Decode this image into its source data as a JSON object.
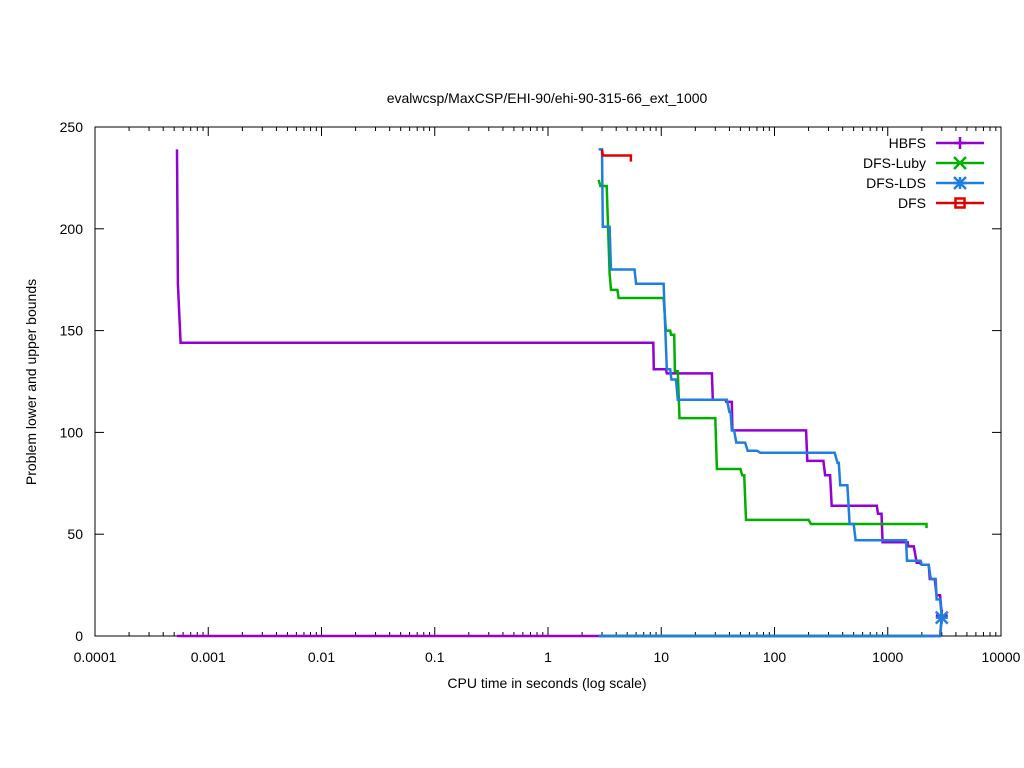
{
  "chart_data": {
    "type": "line",
    "title": "evalwcsp/MaxCSP/EHI-90/ehi-90-315-66_ext_1000",
    "xlabel": "CPU time in seconds (log scale)",
    "ylabel": "Problem lower and upper bounds",
    "xscale": "log",
    "xlim": [
      0.0001,
      10000
    ],
    "ylim": [
      0,
      250
    ],
    "xticks": [
      {
        "value": 0.0001,
        "label": "0.0001"
      },
      {
        "value": 0.001,
        "label": "0.001"
      },
      {
        "value": 0.01,
        "label": "0.01"
      },
      {
        "value": 0.1,
        "label": "0.1"
      },
      {
        "value": 1,
        "label": "1"
      },
      {
        "value": 10,
        "label": "10"
      },
      {
        "value": 100,
        "label": "100"
      },
      {
        "value": 1000,
        "label": "1000"
      },
      {
        "value": 10000,
        "label": "10000"
      }
    ],
    "yticks": [
      {
        "value": 0,
        "label": "0"
      },
      {
        "value": 50,
        "label": "50"
      },
      {
        "value": 100,
        "label": "100"
      },
      {
        "value": 150,
        "label": "150"
      },
      {
        "value": 200,
        "label": "200"
      },
      {
        "value": 250,
        "label": "250"
      }
    ],
    "grid": false,
    "legend_position": "top-right",
    "series": [
      {
        "name": "HBFS",
        "color": "#9400d3",
        "marker": "plus",
        "upper": [
          [
            0.00053,
            239
          ],
          [
            0.00054,
            173
          ],
          [
            0.00057,
            144
          ],
          [
            8.5,
            144
          ],
          [
            8.6,
            131
          ],
          [
            11,
            131
          ],
          [
            11.2,
            129
          ],
          [
            14.5,
            129
          ],
          [
            28,
            129
          ],
          [
            28.5,
            116
          ],
          [
            37,
            116
          ],
          [
            37.5,
            115
          ],
          [
            42,
            115
          ],
          [
            42.5,
            101
          ],
          [
            190,
            101
          ],
          [
            195,
            86
          ],
          [
            270,
            86
          ],
          [
            280,
            79
          ],
          [
            310,
            79
          ],
          [
            320,
            64
          ],
          [
            800,
            64
          ],
          [
            820,
            60
          ],
          [
            880,
            60
          ],
          [
            900,
            46
          ],
          [
            1500,
            46
          ],
          [
            1520,
            44
          ],
          [
            1700,
            44
          ],
          [
            1800,
            36
          ],
          [
            1900,
            36
          ],
          [
            2000,
            35
          ],
          [
            2300,
            35
          ],
          [
            2350,
            28
          ],
          [
            2600,
            28
          ],
          [
            2700,
            20
          ],
          [
            2900,
            20
          ],
          [
            3000,
            10
          ]
        ],
        "lower": [
          [
            0.00053,
            0
          ],
          [
            2900,
            0
          ],
          [
            3000,
            10
          ]
        ],
        "end": [
          3000,
          10
        ]
      },
      {
        "name": "DFS-Luby",
        "color": "#00b000",
        "marker": "x",
        "upper": [
          [
            2.8,
            224
          ],
          [
            2.9,
            221
          ],
          [
            3.3,
            221
          ],
          [
            3.5,
            178
          ],
          [
            3.6,
            170
          ],
          [
            4.1,
            170
          ],
          [
            4.2,
            166
          ],
          [
            10.5,
            166
          ],
          [
            11,
            150
          ],
          [
            12,
            150
          ],
          [
            12.2,
            148
          ],
          [
            13,
            148
          ],
          [
            13.2,
            130
          ],
          [
            14,
            130
          ],
          [
            14.5,
            107
          ],
          [
            30,
            107
          ],
          [
            31,
            82
          ],
          [
            50,
            82
          ],
          [
            52,
            79
          ],
          [
            54,
            79
          ],
          [
            56,
            57
          ],
          [
            200,
            57
          ],
          [
            210,
            55
          ],
          [
            2200,
            55
          ],
          [
            2200,
            53
          ]
        ],
        "lower": [
          [
            2.8,
            0
          ],
          [
            2200,
            0
          ]
        ],
        "end": null
      },
      {
        "name": "DFS-LDS",
        "color": "#1e7fe0",
        "marker": "star",
        "upper": [
          [
            2.8,
            239
          ],
          [
            3.0,
            239
          ],
          [
            3.05,
            201
          ],
          [
            3.5,
            201
          ],
          [
            3.6,
            180
          ],
          [
            5.8,
            180
          ],
          [
            6,
            173
          ],
          [
            10.5,
            173
          ],
          [
            11.2,
            131
          ],
          [
            12,
            131
          ],
          [
            12.3,
            126
          ],
          [
            13.5,
            126
          ],
          [
            14,
            116
          ],
          [
            38,
            116
          ],
          [
            40,
            110
          ],
          [
            41,
            110
          ],
          [
            42,
            101
          ],
          [
            44,
            101
          ],
          [
            46,
            95
          ],
          [
            55,
            95
          ],
          [
            58,
            91
          ],
          [
            70,
            91
          ],
          [
            75,
            90
          ],
          [
            340,
            90
          ],
          [
            360,
            85
          ],
          [
            370,
            85
          ],
          [
            380,
            74
          ],
          [
            440,
            74
          ],
          [
            460,
            55
          ],
          [
            500,
            55
          ],
          [
            520,
            47
          ],
          [
            1450,
            47
          ],
          [
            1480,
            37
          ],
          [
            1950,
            37
          ],
          [
            2000,
            35
          ],
          [
            2300,
            35
          ],
          [
            2400,
            28
          ],
          [
            2650,
            28
          ],
          [
            2700,
            18
          ],
          [
            2900,
            18
          ],
          [
            3000,
            9
          ]
        ],
        "lower": [
          [
            2.8,
            0
          ],
          [
            2900,
            0
          ],
          [
            3000,
            9
          ]
        ],
        "end": [
          3000,
          9
        ]
      },
      {
        "name": "DFS",
        "color": "#e00000",
        "marker": "square",
        "upper": [
          [
            3.0,
            239
          ],
          [
            3.05,
            236
          ],
          [
            5.4,
            236
          ],
          [
            5.4,
            233
          ]
        ],
        "lower": [],
        "end": null
      }
    ]
  }
}
